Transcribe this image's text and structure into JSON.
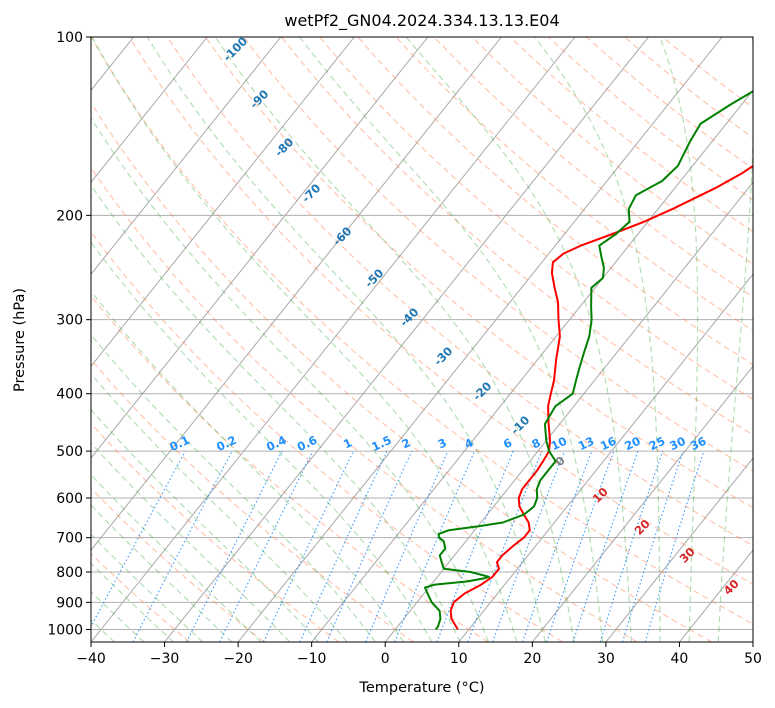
{
  "chart_data": {
    "type": "line",
    "title": "wetPf2_GN04.2024.334.13.13.E04",
    "xlabel": "Temperature (°C)",
    "ylabel": "Pressure (hPa)",
    "xlim": [
      -40,
      50
    ],
    "ylim": [
      1050,
      100
    ],
    "y_scale": "log",
    "grid": true,
    "x_ticks": [
      -40,
      -30,
      -20,
      -10,
      0,
      10,
      20,
      30,
      40,
      50
    ],
    "y_ticks": [
      100,
      200,
      300,
      400,
      500,
      600,
      700,
      800,
      900,
      1000
    ],
    "dry_adiabat_labels": [
      "-100",
      "-90",
      "-80",
      "-70",
      "-60",
      "-50",
      "-40",
      "-30",
      "-20",
      "-10"
    ],
    "mixing_ratio_labels": [
      "0.1",
      "0.2",
      "0.4",
      "0.6",
      "1",
      "1.5",
      "2",
      "3",
      "4",
      "6",
      "8",
      "10",
      "13",
      "16",
      "20",
      "25",
      "30",
      "36"
    ],
    "moist_adiabat_labels": [
      "0",
      "10",
      "20",
      "30",
      "40"
    ],
    "colors": {
      "temperature": "#ff0000",
      "dewpoint": "#008000",
      "dry_adiabat": "#ff7f50",
      "moist_adiabat": "#2ca02c",
      "mixing_ratio": "#1e90ff",
      "isotherm": "#808080"
    },
    "series": [
      {
        "name": "",
        "role": "temperature",
        "pressure": [
          1000,
          960,
          930,
          900,
          870,
          840,
          815,
          790,
          770,
          750,
          720,
          700,
          680,
          660,
          640,
          620,
          600,
          580,
          560,
          540,
          520,
          500,
          480,
          450,
          420,
          400,
          380,
          350,
          320,
          300,
          280,
          265,
          250,
          240,
          232,
          225,
          215,
          205,
          195,
          180,
          170,
          160,
          150,
          140,
          130,
          120,
          110,
          100
        ],
        "temperature": [
          8.5,
          6.5,
          5.5,
          5.0,
          5.5,
          6.8,
          7.5,
          7.5,
          6.5,
          6.5,
          7.0,
          7.5,
          7.5,
          6.5,
          5.0,
          3.5,
          2.5,
          2.0,
          2.0,
          2.0,
          1.8,
          1.5,
          0.5,
          -1.5,
          -3.5,
          -4.5,
          -5.5,
          -7.5,
          -9.5,
          -11.5,
          -13.5,
          -15.5,
          -17.5,
          -18.5,
          -18.0,
          -16.5,
          -13.5,
          -10.5,
          -8.0,
          -4.5,
          -2.5,
          -1.0,
          0.5,
          2.0,
          3.0,
          4.5,
          6.0,
          7.5
        ]
      },
      {
        "name": "",
        "role": "dewpoint",
        "pressure": [
          1000,
          990,
          960,
          930,
          900,
          870,
          850,
          840,
          830,
          820,
          815,
          800,
          790,
          770,
          750,
          730,
          710,
          700,
          690,
          680,
          670,
          660,
          640,
          620,
          600,
          580,
          560,
          540,
          520,
          500,
          480,
          450,
          420,
          400,
          380,
          360,
          340,
          320,
          300,
          285,
          265,
          255,
          245,
          235,
          225,
          215,
          205,
          195,
          185,
          175,
          165,
          150,
          140,
          130,
          120,
          110,
          100
        ],
        "temperature": [
          5.5,
          5.5,
          5.0,
          4.0,
          2.0,
          0.5,
          -0.5,
          0.5,
          4.5,
          6.5,
          7.0,
          4.0,
          0.0,
          -1.0,
          -2.0,
          -2.0,
          -3.0,
          -4.0,
          -4.5,
          -3.5,
          0.0,
          3.0,
          5.0,
          5.5,
          5.0,
          4.0,
          3.5,
          3.5,
          3.5,
          1.5,
          0.0,
          -2.0,
          -2.5,
          -1.5,
          -2.5,
          -3.5,
          -4.5,
          -5.5,
          -7.0,
          -8.5,
          -10.5,
          -10.0,
          -11.0,
          -12.5,
          -14.0,
          -13.0,
          -12.5,
          -14.0,
          -14.5,
          -12.5,
          -12.0,
          -13.0,
          -13.5,
          -11.5,
          -9.0,
          -7.5,
          -5.5
        ]
      }
    ]
  }
}
